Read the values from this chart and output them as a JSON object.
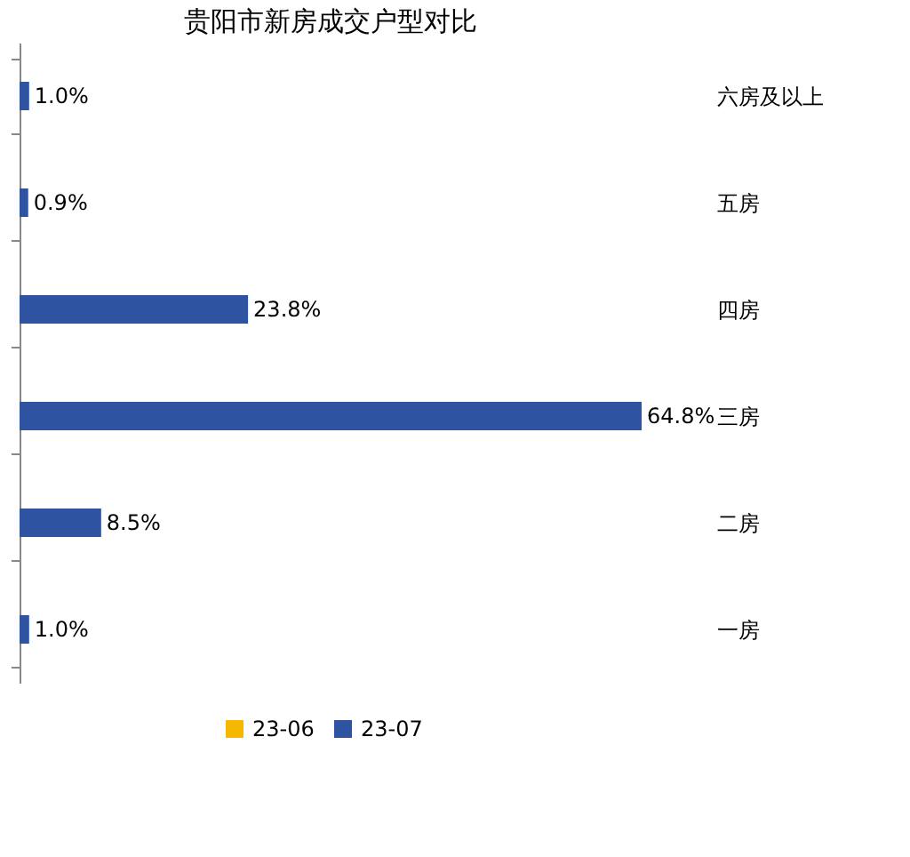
{
  "chart_data": {
    "type": "bar",
    "orientation": "horizontal",
    "title": "贵阳市新房成交户型对比",
    "categories": [
      "六房及以上",
      "五房",
      "四房",
      "三房",
      "二房",
      "一房"
    ],
    "series": [
      {
        "name": "23-06",
        "color": "#f5b800",
        "values": [
          null,
          null,
          null,
          null,
          null,
          null
        ]
      },
      {
        "name": "23-07",
        "color": "#2e54a1",
        "values": [
          1.0,
          0.9,
          23.8,
          64.8,
          8.5,
          1.0
        ],
        "value_labels": [
          "1.0%",
          "0.9%",
          "23.8%",
          "64.8%",
          "8.5%",
          "1.0%"
        ]
      }
    ],
    "legend": "bottom"
  }
}
